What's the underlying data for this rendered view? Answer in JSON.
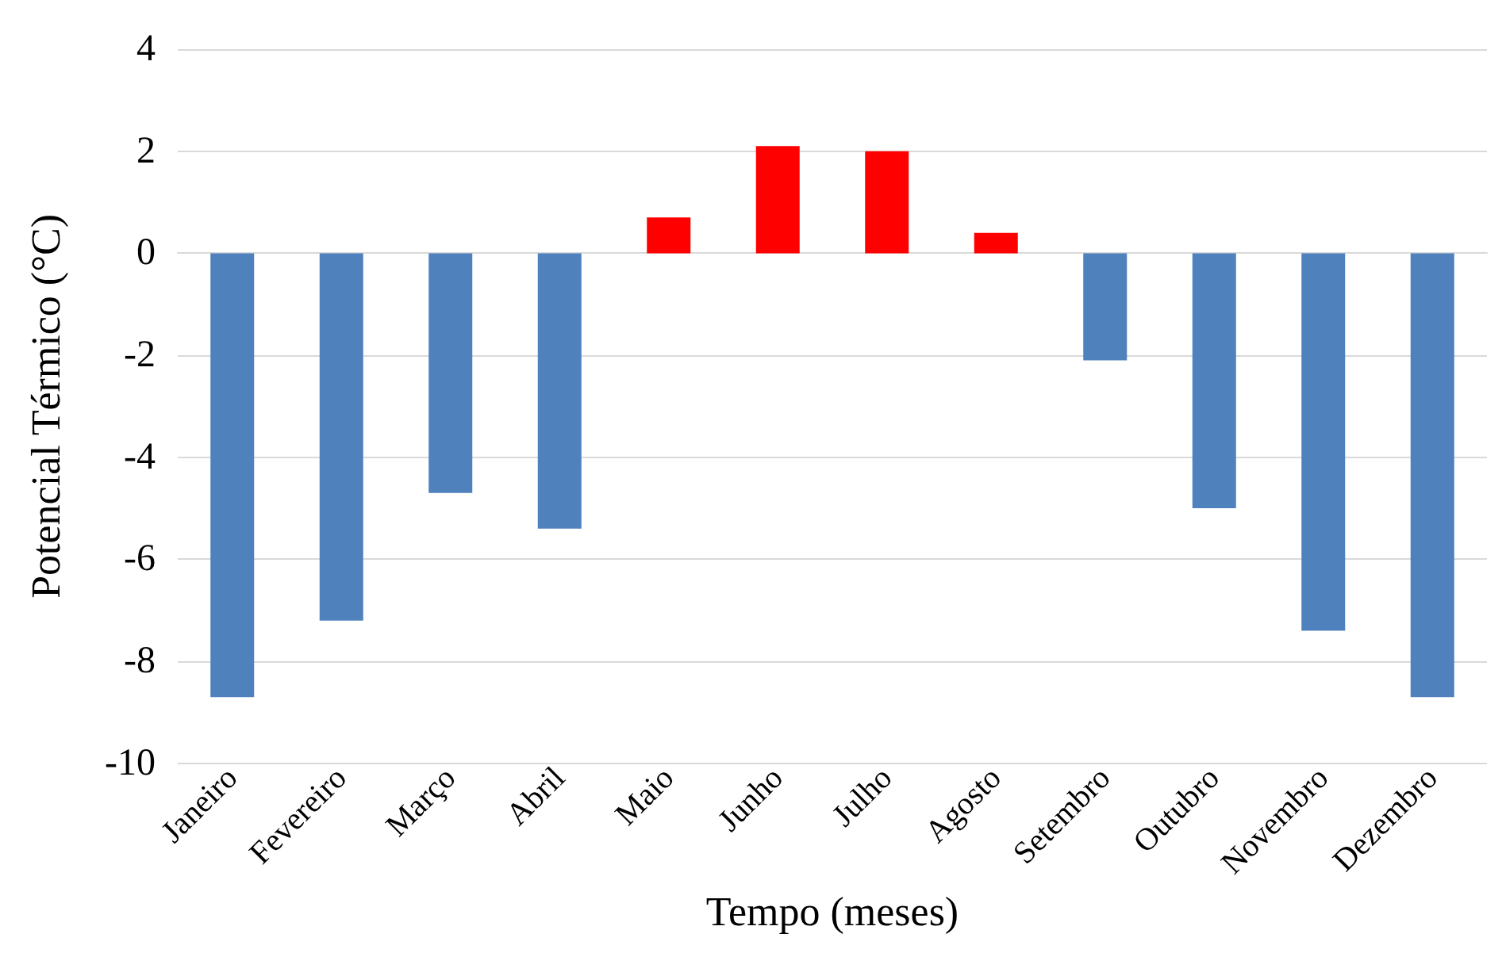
{
  "chart_data": {
    "type": "bar",
    "xlabel": "Tempo (meses)",
    "ylabel": "Potencial Térmico (°C)",
    "categories": [
      "Janeiro",
      "Fevereiro",
      "Março",
      "Abril",
      "Maio",
      "Junho",
      "Julho",
      "Agosto",
      "Setembro",
      "Outubro",
      "Novembro",
      "Dezembro"
    ],
    "values": [
      -8.7,
      -7.2,
      -4.7,
      -5.4,
      0.7,
      2.1,
      2.0,
      0.4,
      -2.1,
      -5.0,
      -7.4,
      -8.7
    ],
    "colors": [
      "#4f81bd",
      "#4f81bd",
      "#4f81bd",
      "#4f81bd",
      "#ff0000",
      "#ff0000",
      "#ff0000",
      "#ff0000",
      "#4f81bd",
      "#4f81bd",
      "#4f81bd",
      "#4f81bd"
    ],
    "ylim": [
      -10,
      4
    ],
    "yticks": [
      -10,
      -8,
      -6,
      -4,
      -2,
      0,
      2,
      4
    ],
    "grid": "y"
  }
}
